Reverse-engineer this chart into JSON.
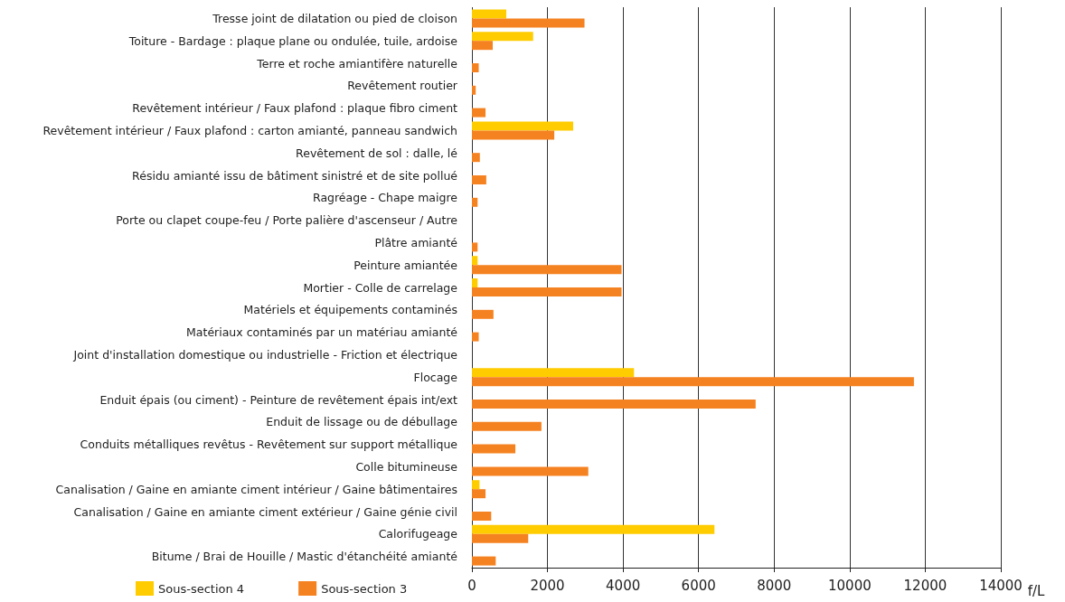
{
  "chart_data": {
    "type": "bar",
    "orientation": "horizontal",
    "xlabel": "f/L",
    "categories": [
      "Tresse joint de dilatation ou pied de cloison",
      "Toiture - Bardage : plaque plane ou ondulée, tuile, ardoise",
      "Terre et roche amiantifère naturelle",
      "Revêtement routier",
      "Revêtement intérieur / Faux plafond : plaque fibro ciment",
      "Revêtement intérieur / Faux plafond : carton amianté, panneau sandwich",
      "Revêtement de sol : dalle, lé",
      "Résidu amianté issu de bâtiment sinistré et de site pollué",
      "Ragréage - Chape maigre",
      "Porte ou clapet coupe-feu / Porte palière d'ascenseur / Autre",
      "Plâtre amianté",
      "Peinture amiantée",
      "Mortier - Colle de carrelage",
      "Matériels et équipements contaminés",
      "Matériaux contaminés par un matériau amianté",
      "Joint d'installation domestique ou industrielle - Friction et électrique",
      "Flocage",
      "Enduit épais (ou ciment) - Peinture de revêtement épais int/ext",
      "Enduit de lissage ou de débullage",
      "Conduits métalliques revêtus - Revêtement sur support métallique",
      "Colle bitumineuse",
      "Canalisation / Gaine en amiante ciment intérieur / Gaine bâtimentaires",
      "Canalisation / Gaine en amiante ciment extérieur / Gaine génie civil",
      "Calorifugeage",
      "Bitume / Brai de Houille / Mastic d'étanchéité amianté"
    ],
    "series": [
      {
        "name": "Sous-section 4",
        "color": "#ffcc00",
        "values": [
          910,
          1620,
          null,
          null,
          null,
          2680,
          null,
          null,
          null,
          null,
          null,
          150,
          150,
          null,
          null,
          null,
          4290,
          null,
          null,
          null,
          null,
          200,
          null,
          6420,
          null
        ]
      },
      {
        "name": "Sous-section 3",
        "color": "#f58220",
        "values": [
          2980,
          550,
          180,
          100,
          360,
          2180,
          210,
          380,
          150,
          null,
          150,
          3960,
          3960,
          570,
          180,
          null,
          11700,
          7510,
          1840,
          1150,
          3080,
          360,
          510,
          1490,
          630
        ]
      }
    ],
    "xlim": [
      0,
      14000
    ],
    "xticks": [
      0,
      2000,
      4000,
      6000,
      8000,
      10000,
      12000,
      14000
    ],
    "grid": "x",
    "legend": "bottom left"
  }
}
